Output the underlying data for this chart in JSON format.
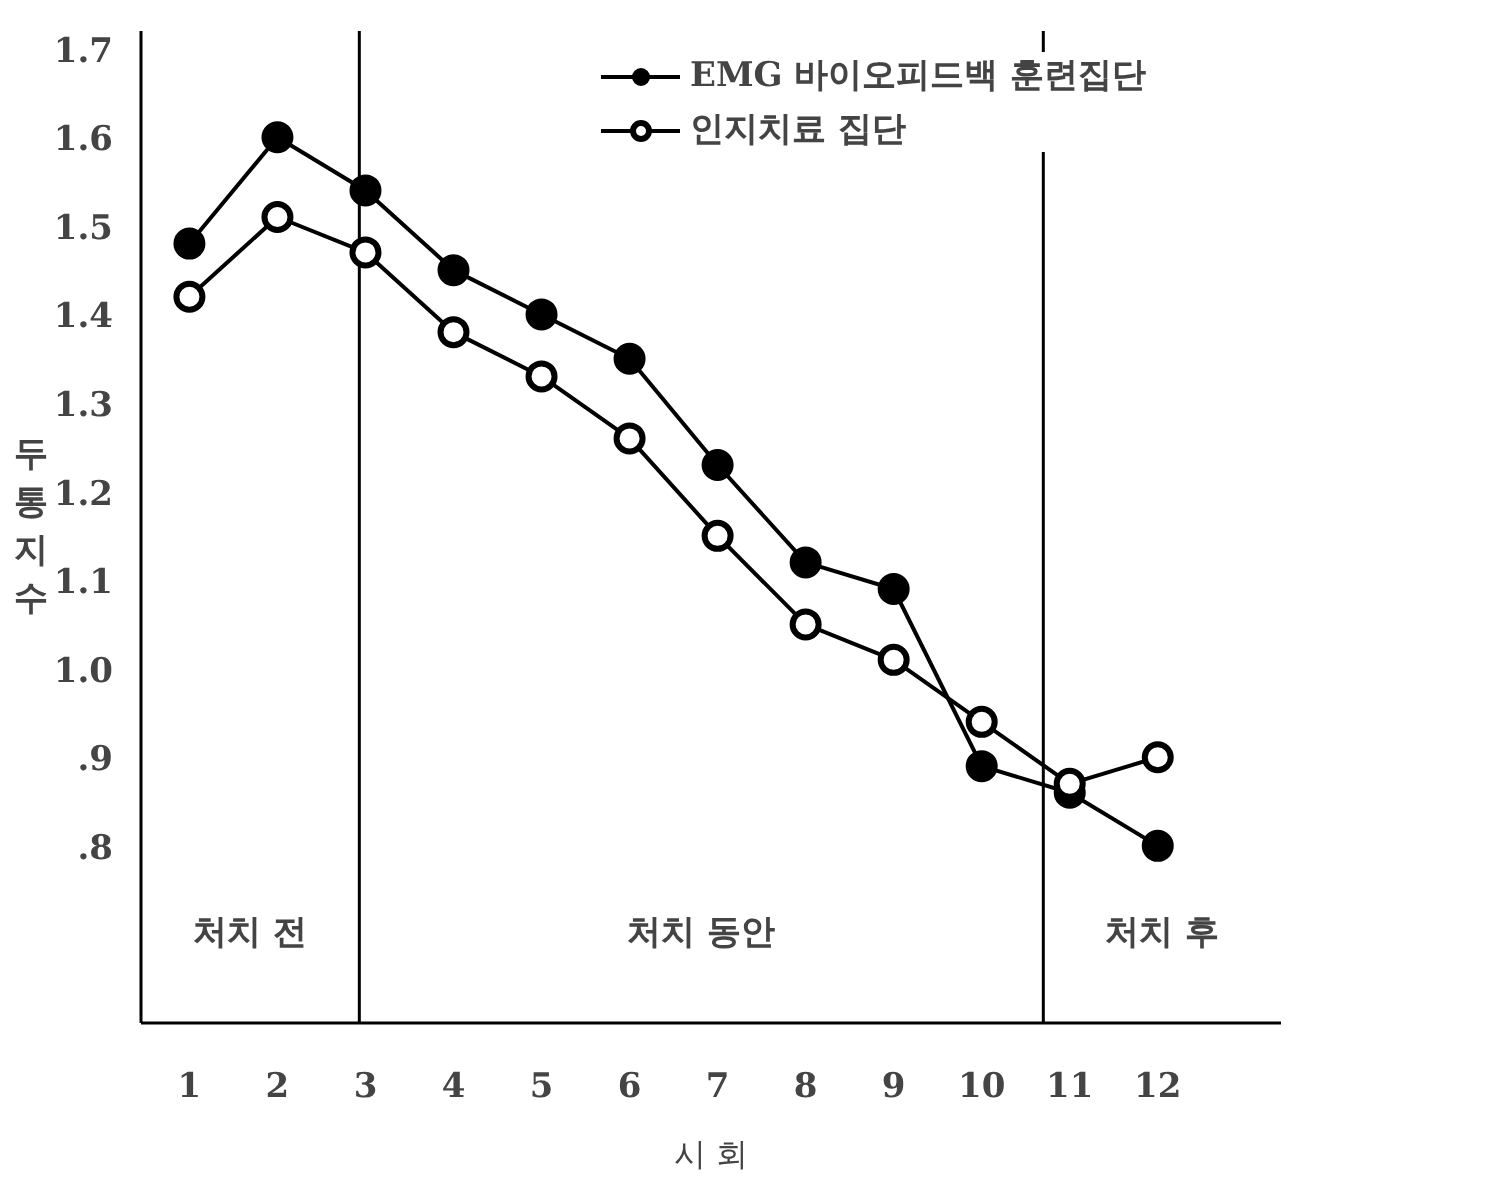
{
  "chart_data": {
    "type": "line",
    "xlabel": "시 회",
    "ylabel": "두통지수",
    "x": [
      1,
      2,
      3,
      4,
      5,
      6,
      7,
      8,
      9,
      10,
      11,
      12
    ],
    "xlim": [
      0.45,
      13.4
    ],
    "xticks": [
      1,
      2,
      3,
      4,
      5,
      6,
      7,
      8,
      9,
      10,
      11,
      12
    ],
    "ylim": [
      0.6,
      1.72
    ],
    "yticks": [
      {
        "value": 0.8,
        "label": ".8"
      },
      {
        "value": 0.9,
        "label": ".9"
      },
      {
        "value": 1.0,
        "label": "1.0"
      },
      {
        "value": 1.1,
        "label": "1.1"
      },
      {
        "value": 1.2,
        "label": "1.2"
      },
      {
        "value": 1.3,
        "label": "1.3"
      },
      {
        "value": 1.4,
        "label": "1.4"
      },
      {
        "value": 1.5,
        "label": "1.5"
      },
      {
        "value": 1.6,
        "label": "1.6"
      },
      {
        "value": 1.7,
        "label": "1.7"
      }
    ],
    "series": [
      {
        "name": "EMG 바이오피드백 훈련집단",
        "color": "#000000",
        "marker": "circle",
        "values": [
          1.48,
          1.6,
          1.54,
          1.45,
          1.4,
          1.35,
          1.23,
          1.12,
          1.09,
          0.89,
          0.86,
          0.8
        ]
      },
      {
        "name": "인지치료 집단",
        "color": "#000000",
        "marker": "circle_open",
        "values": [
          1.42,
          1.51,
          1.47,
          1.38,
          1.33,
          1.26,
          1.15,
          1.05,
          1.01,
          0.94,
          0.87,
          0.9
        ]
      }
    ],
    "ref_lines": [
      {
        "axis": "x",
        "value": 2.93
      },
      {
        "axis": "x",
        "value": 10.7
      }
    ],
    "annotations": [
      "처치 전",
      "처치 동안",
      "처치 후"
    ],
    "grid": false,
    "legend": "top right",
    "line_style": "solid"
  }
}
